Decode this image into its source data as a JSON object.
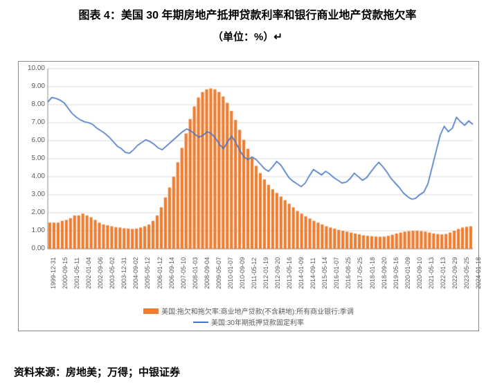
{
  "title": "图表 4：美国 30 年期房地产抵押贷款利率和银行商业地产贷款拖欠率",
  "subtitle": "（单位：%）↵",
  "source": "资料来源：房地美；万得；中银证券",
  "chart": {
    "type": "combo-bar-line",
    "background_color": "#ffffff",
    "border_color": "#888888",
    "grid_color": "#d9d9d9",
    "text_color": "#595959",
    "label_fontsize": 9,
    "ylim": [
      0,
      10
    ],
    "ytick_step": 1,
    "yticks": [
      "0.00",
      "1.00",
      "2.00",
      "3.00",
      "4.00",
      "5.00",
      "6.00",
      "7.00",
      "8.00",
      "9.00",
      "10.00"
    ],
    "xlabels": [
      "1999-12-31",
      "2000-09-15",
      "2001-05-11",
      "2002-01-04",
      "2002-09-06",
      "2003-05-02",
      "2003-12-31",
      "2004-09-02",
      "2005-05-12",
      "2006-01-12",
      "2006-09-14",
      "2007-05-10",
      "2008-01-03",
      "2008-09-04",
      "2009-05-07",
      "2010-01-07",
      "2010-09-09",
      "2011-05-12",
      "2012-01-19",
      "2012-09-20",
      "2013-05-16",
      "2014-01-09",
      "2014-09-11",
      "2015-05-14",
      "2016-01-07",
      "2016-08-25",
      "2017-05-25",
      "2018-01-18",
      "2018-09-20",
      "2019-05-16",
      "2020-01-09",
      "2020-09-10",
      "2021-05-13",
      "2022-01-13",
      "2022-09-29",
      "2023-05-25",
      "2024-01-18"
    ],
    "series_bar": {
      "name": "美国:拖欠和拖欠率:商业地产贷款(不含耕地):所有商业银行:季调",
      "color": "#ed7d31",
      "values": [
        1.45,
        1.45,
        1.45,
        1.55,
        1.6,
        1.7,
        1.85,
        1.85,
        1.95,
        1.85,
        1.75,
        1.6,
        1.45,
        1.35,
        1.3,
        1.25,
        1.2,
        1.18,
        1.14,
        1.12,
        1.1,
        1.12,
        1.18,
        1.25,
        1.35,
        1.55,
        1.85,
        2.3,
        2.85,
        3.4,
        4.0,
        4.8,
        5.6,
        6.4,
        7.2,
        7.9,
        8.4,
        8.7,
        8.85,
        8.9,
        8.85,
        8.7,
        8.45,
        8.1,
        7.65,
        7.15,
        6.6,
        6.05,
        5.55,
        5.05,
        4.6,
        4.2,
        3.85,
        3.55,
        3.3,
        3.1,
        2.9,
        2.7,
        2.5,
        2.3,
        2.1,
        1.95,
        1.8,
        1.68,
        1.55,
        1.45,
        1.35,
        1.25,
        1.18,
        1.12,
        1.05,
        1.0,
        0.95,
        0.9,
        0.85,
        0.8,
        0.75,
        0.72,
        0.7,
        0.68,
        0.67,
        0.68,
        0.72,
        0.78,
        0.85,
        0.9,
        0.95,
        0.98,
        1.0,
        1.0,
        0.98,
        0.95,
        0.9,
        0.85,
        0.82,
        0.8,
        0.82,
        0.9,
        1.0,
        1.1,
        1.18,
        1.22,
        1.25
      ]
    },
    "series_line": {
      "name": "美国:30年期抵押贷款固定利率",
      "color": "#4472c4",
      "line_width": 1.6,
      "values": [
        8.15,
        8.4,
        8.35,
        8.25,
        8.1,
        7.8,
        7.5,
        7.3,
        7.15,
        7.05,
        7.0,
        6.9,
        6.7,
        6.55,
        6.4,
        6.2,
        5.95,
        5.7,
        5.55,
        5.35,
        5.3,
        5.5,
        5.75,
        5.9,
        6.05,
        5.95,
        5.8,
        5.6,
        5.5,
        5.7,
        5.9,
        6.1,
        6.3,
        6.5,
        6.65,
        6.55,
        6.35,
        6.2,
        6.3,
        6.5,
        6.4,
        6.15,
        5.8,
        5.55,
        5.95,
        6.25,
        5.9,
        5.45,
        5.1,
        4.95,
        5.1,
        4.95,
        4.7,
        4.45,
        4.3,
        4.55,
        4.85,
        4.65,
        4.3,
        3.95,
        3.75,
        3.6,
        3.45,
        3.65,
        4.05,
        4.4,
        4.25,
        4.1,
        4.3,
        4.15,
        3.95,
        3.8,
        3.65,
        3.7,
        3.9,
        4.2,
        4.0,
        3.8,
        3.95,
        4.25,
        4.55,
        4.8,
        4.55,
        4.25,
        3.9,
        3.65,
        3.4,
        3.1,
        2.9,
        2.75,
        2.8,
        3.0,
        3.15,
        3.6,
        4.5,
        5.4,
        6.3,
        6.8,
        6.5,
        6.7,
        7.3,
        7.05,
        6.85,
        7.1,
        6.9
      ]
    },
    "legend": {
      "position": "bottom",
      "items": [
        {
          "type": "bar",
          "color": "#ed7d31",
          "label": "美国:拖欠和拖欠率:商业地产贷款(不含耕地):所有商业银行:季调"
        },
        {
          "type": "line",
          "color": "#4472c4",
          "label": "美国:30年期抵押贷款固定利率"
        }
      ]
    }
  }
}
